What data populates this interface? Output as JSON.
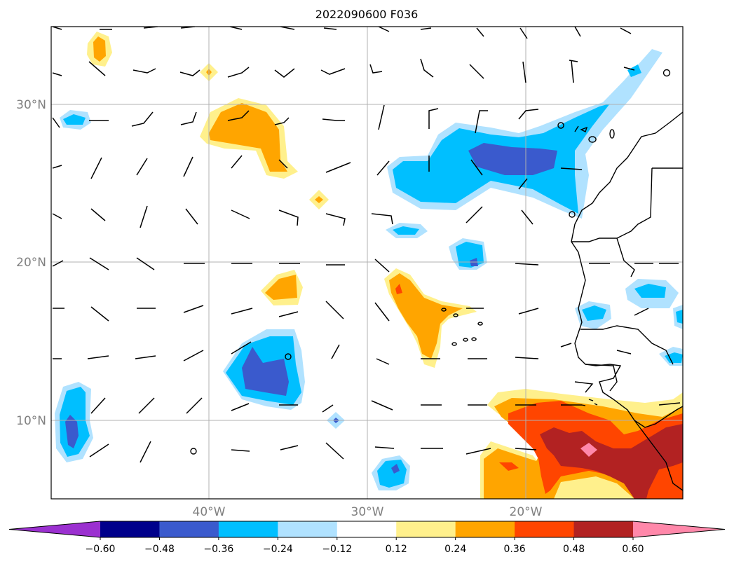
{
  "title": "2022090600 F036",
  "map": {
    "lat_labels": [
      {
        "lat": 30,
        "text": "30°N"
      },
      {
        "lat": 20,
        "text": "20°N"
      },
      {
        "lat": 10,
        "text": "10°N"
      }
    ],
    "lon_labels": [
      {
        "lon": -40,
        "text": "40°W"
      },
      {
        "lon": -30,
        "text": "30°W"
      },
      {
        "lon": -20,
        "text": "20°W"
      }
    ],
    "gridline_color": "#b0b0b0",
    "tick_label_color": "#808080"
  },
  "colorbar": {
    "ticks": [
      "−0.60",
      "−0.48",
      "−0.36",
      "−0.24",
      "−0.12",
      "0.12",
      "0.24",
      "0.36",
      "0.48",
      "0.60"
    ],
    "colors": [
      "#9b30d0",
      "#00008b",
      "#3a5acd",
      "#00bfff",
      "#b0e2ff",
      "#ffffff",
      "#fff08c",
      "#ffa500",
      "#ff4500",
      "#b22222",
      "#ff88aa"
    ]
  },
  "legend_colors": {
    "neg_strong": "#3a5acd",
    "neg_mid": "#00bfff",
    "neg_light": "#b0e2ff",
    "pos_light": "#fff08c",
    "pos_mid": "#ffa500",
    "pos_strong": "#ff4500",
    "pos_dark": "#b22222",
    "pos_max": "#ff88aa"
  }
}
